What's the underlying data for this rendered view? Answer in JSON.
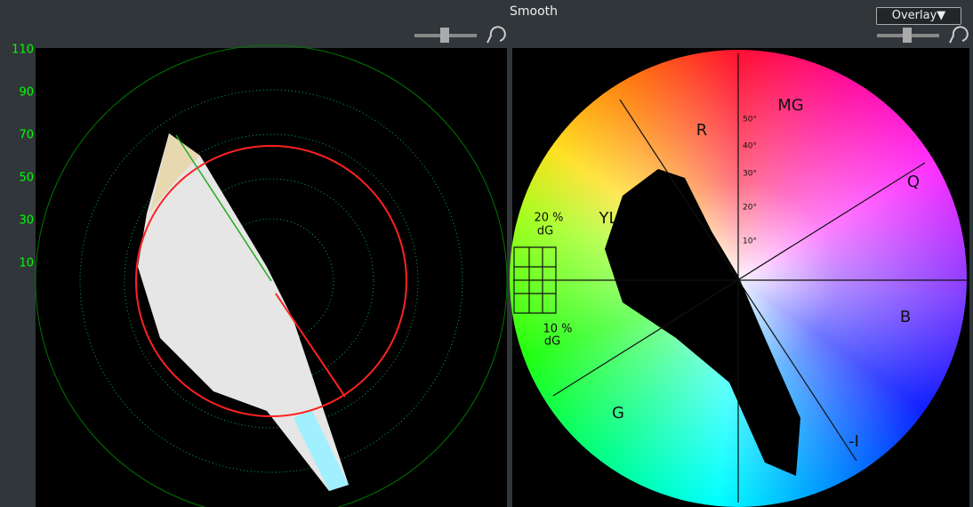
{
  "header": {
    "title": "Smooth"
  },
  "left_scope": {
    "scale_labels": [
      "110",
      "90",
      "70",
      "50",
      "30",
      "10"
    ]
  },
  "right_scope": {
    "menu": "Overlay▼",
    "targets": [
      "R",
      "MG",
      "Q",
      "YL",
      "B",
      "G",
      "-I"
    ],
    "degree_labels": [
      "50°",
      "40°",
      "30°",
      "20°",
      "10°"
    ],
    "skin_labels": [
      "20 %",
      "dG",
      "10 %",
      "dG"
    ]
  }
}
